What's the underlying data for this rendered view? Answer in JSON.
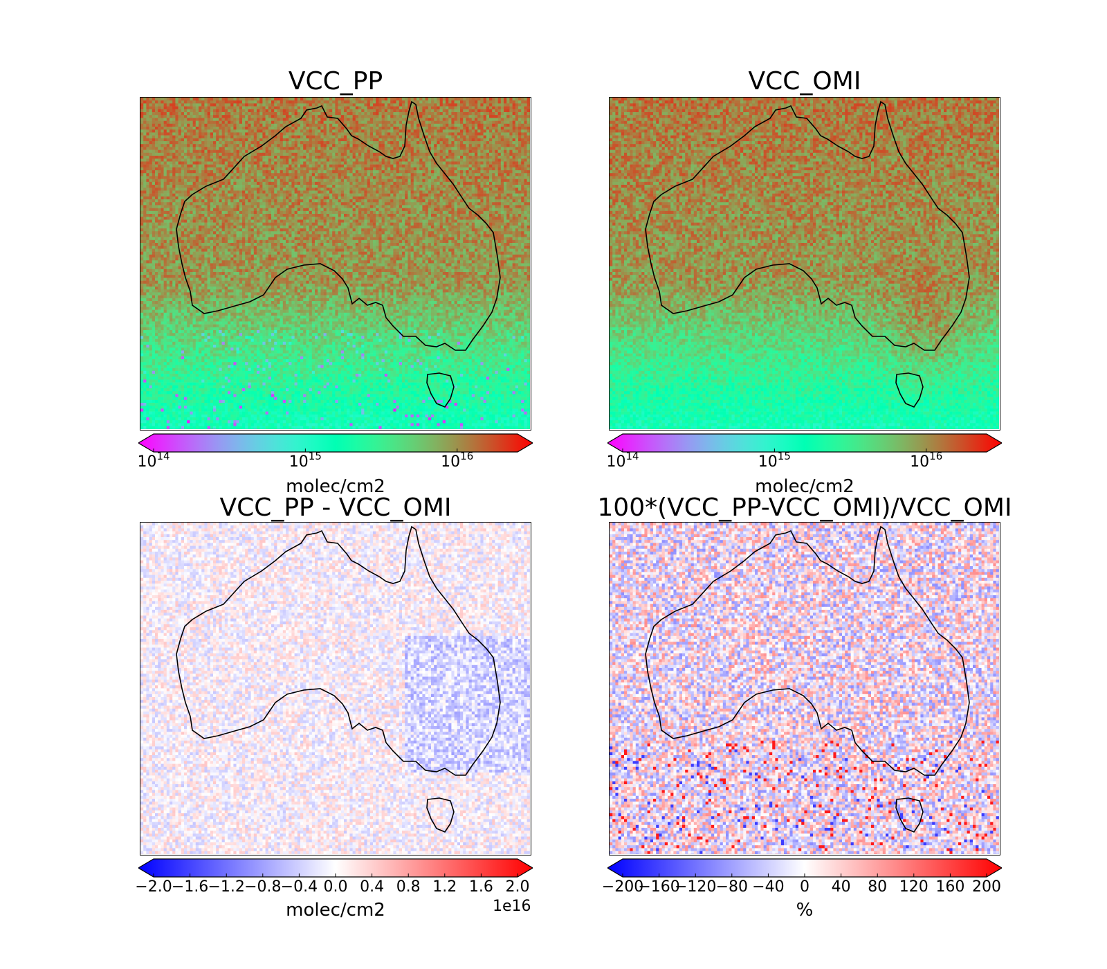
{
  "chart_data": [
    {
      "type": "heatmap",
      "title": "VCC_PP",
      "colormap": "rainbow",
      "scale": "log",
      "colorbar": {
        "range": [
          100000000000000.0,
          2.5e+16
        ],
        "extend": "both",
        "ticks": [
          {
            "base": "10",
            "exp": "14",
            "value": 100000000000000.0
          },
          {
            "base": "10",
            "exp": "15",
            "value": 1000000000000000.0
          },
          {
            "base": "10",
            "exp": "16",
            "value": 1e+16
          }
        ],
        "label": "molec/cm2"
      },
      "region": "Australia"
    },
    {
      "type": "heatmap",
      "title": "VCC_OMI",
      "colormap": "rainbow",
      "scale": "log",
      "colorbar": {
        "range": [
          100000000000000.0,
          2.5e+16
        ],
        "extend": "both",
        "ticks": [
          {
            "base": "10",
            "exp": "14",
            "value": 100000000000000.0
          },
          {
            "base": "10",
            "exp": "15",
            "value": 1000000000000000.0
          },
          {
            "base": "10",
            "exp": "16",
            "value": 1e+16
          }
        ],
        "label": "molec/cm2"
      },
      "region": "Australia"
    },
    {
      "type": "heatmap",
      "title": "VCC_PP - VCC_OMI",
      "colormap": "bwr",
      "scale": "linear",
      "colorbar": {
        "range": [
          -2.0,
          2.0
        ],
        "extend": "both",
        "ticks": [
          "−2.0",
          "−1.6",
          "−1.2",
          "−0.8",
          "−0.4",
          "0.0",
          "0.4",
          "0.8",
          "1.2",
          "1.6",
          "2.0"
        ],
        "label": "molec/cm2",
        "offset": "1e16"
      },
      "region": "Australia"
    },
    {
      "type": "heatmap",
      "title": "100*(VCC_PP-VCC_OMI)/VCC_OMI",
      "colormap": "bwr",
      "scale": "linear",
      "colorbar": {
        "range": [
          -200,
          200
        ],
        "extend": "both",
        "ticks": [
          "−200",
          "−160",
          "−120",
          "−80",
          "−40",
          "0",
          "40",
          "80",
          "120",
          "160",
          "200"
        ],
        "label": "%"
      },
      "region": "Australia"
    }
  ]
}
